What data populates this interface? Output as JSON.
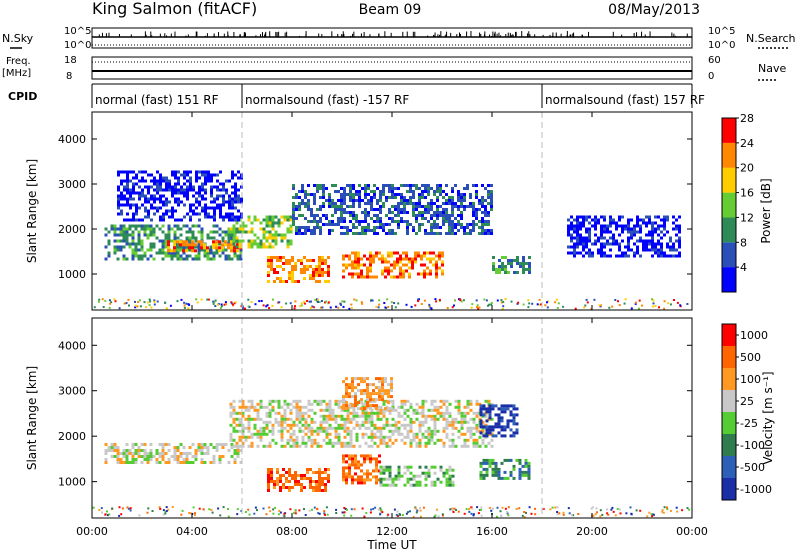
{
  "header": {
    "station": "King Salmon (fitACF)",
    "beam": "Beam 09",
    "date": "08/May/2013"
  },
  "status_panels": {
    "nsky_label": "N.Sky",
    "nsearch_label": "N.Search",
    "freq_label_top": "Freq.",
    "freq_label_unit": "[MHz]",
    "nave_label": "Nave",
    "cpid_label": "CPID",
    "noise_left_ticks": [
      "10^5",
      "10^0"
    ],
    "noise_right_ticks": [
      "10^5",
      "10^0"
    ],
    "freq_left_ticks": [
      "18",
      "8"
    ],
    "nave_right_ticks": [
      "60",
      "0"
    ]
  },
  "cpid_segments": [
    {
      "label": "normal (fast) 151 RF",
      "start_hour": 0,
      "end_hour": 6
    },
    {
      "label": "normalsound (fast) -157 RF",
      "start_hour": 6,
      "end_hour": 18
    },
    {
      "label": "normalsound (fast) 157 RF",
      "start_hour": 18,
      "end_hour": 24
    }
  ],
  "chart_data": [
    {
      "type": "heatmap",
      "panel": "power",
      "ylabel": "Slant Range [km]",
      "xlabel": "Time UT",
      "x_ticks": [
        "00:00",
        "04:00",
        "08:00",
        "12:00",
        "16:00",
        "20:00",
        "00:00"
      ],
      "y_ticks": [
        1000,
        2000,
        3000,
        4000
      ],
      "xlim_hours": [
        0,
        24
      ],
      "ylim_km": [
        200,
        4600
      ],
      "colorbar": {
        "label": "Power [dB]",
        "ticks": [
          "4",
          "8",
          "12",
          "16",
          "20",
          "24",
          "28"
        ],
        "colors": [
          "#0000ff",
          "#2a4fb8",
          "#2e8b57",
          "#66cc33",
          "#ffcc00",
          "#ff8800",
          "#ff0000"
        ]
      },
      "echo_regions": [
        {
          "t0": 0.5,
          "t1": 6.0,
          "r0": 1350,
          "r1": 2100,
          "level": 2
        },
        {
          "t0": 3.0,
          "t1": 6.0,
          "r0": 1500,
          "r1": 1750,
          "level": 5
        },
        {
          "t0": 5.5,
          "t1": 8.0,
          "r0": 1600,
          "r1": 2300,
          "level": 3
        },
        {
          "t0": 7.0,
          "t1": 9.5,
          "r0": 800,
          "r1": 1400,
          "level": 5
        },
        {
          "t0": 10.0,
          "t1": 14.0,
          "r0": 900,
          "r1": 1500,
          "level": 5
        },
        {
          "t0": 8.0,
          "t1": 16.0,
          "r0": 1900,
          "r1": 3000,
          "level": 1
        },
        {
          "t0": 16.0,
          "t1": 17.5,
          "r0": 1000,
          "r1": 1400,
          "level": 2
        },
        {
          "t0": 1.0,
          "t1": 6.0,
          "r0": 2200,
          "r1": 3300,
          "level": 0
        },
        {
          "t0": 19.0,
          "t1": 23.5,
          "r0": 1400,
          "r1": 2300,
          "level": 0
        }
      ]
    },
    {
      "type": "heatmap",
      "panel": "velocity",
      "ylabel": "Slant Range [km]",
      "xlabel": "Time UT",
      "x_ticks": [
        "00:00",
        "04:00",
        "08:00",
        "12:00",
        "16:00",
        "20:00",
        "00:00"
      ],
      "y_ticks": [
        1000,
        2000,
        3000,
        4000
      ],
      "xlim_hours": [
        0,
        24
      ],
      "ylim_km": [
        200,
        4600
      ],
      "colorbar": {
        "label": "Velocity [m s⁻¹]",
        "ticks": [
          "1000",
          "500",
          "100",
          "25",
          "-25",
          "-100",
          "-500",
          "-1000"
        ],
        "colors": [
          "#1a2ea8",
          "#2e5fb8",
          "#2f7d4f",
          "#55cc33",
          "#c8c8c8",
          "#ff9922",
          "#ff6600",
          "#ff0000"
        ]
      },
      "echo_regions": [
        {
          "t0": 0.5,
          "t1": 6.0,
          "r0": 1450,
          "r1": 1850,
          "level": 4
        },
        {
          "t0": 5.5,
          "t1": 16.0,
          "r0": 1800,
          "r1": 2800,
          "level": 4
        },
        {
          "t0": 7.0,
          "t1": 9.5,
          "r0": 800,
          "r1": 1300,
          "level": 6
        },
        {
          "t0": 10.0,
          "t1": 11.5,
          "r0": 1000,
          "r1": 1600,
          "level": 6
        },
        {
          "t0": 11.5,
          "t1": 14.5,
          "r0": 950,
          "r1": 1350,
          "level": 3
        },
        {
          "t0": 15.5,
          "t1": 17.5,
          "r0": 1100,
          "r1": 1500,
          "level": 2
        },
        {
          "t0": 15.5,
          "t1": 17.0,
          "r0": 2000,
          "r1": 2700,
          "level": 0
        },
        {
          "t0": 10.0,
          "t1": 12.0,
          "r0": 2600,
          "r1": 3300,
          "level": 5
        }
      ]
    }
  ]
}
